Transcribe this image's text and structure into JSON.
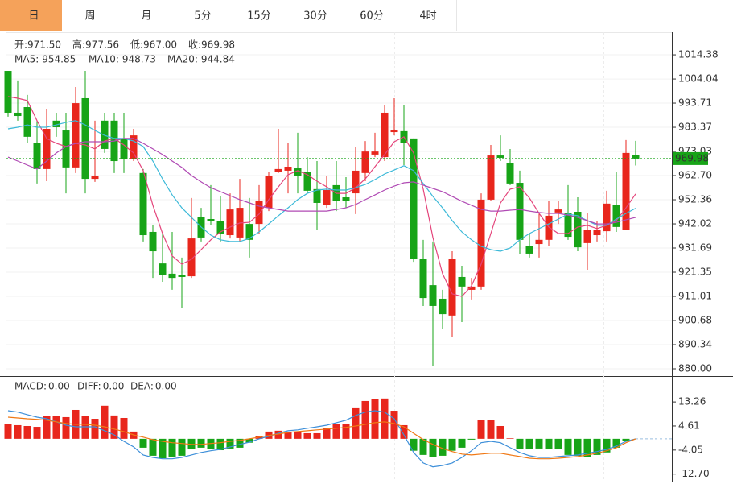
{
  "tabs": [
    "日",
    "周",
    "月",
    "5分",
    "15分",
    "30分",
    "60分",
    "4时"
  ],
  "active_tab": 0,
  "chart_data": [
    {
      "type": "candlestick",
      "grid": true,
      "up_color": "#e8261c",
      "down_color": "#17a417",
      "info_color": "#17a417",
      "info": [
        {
          "label": "开:",
          "value": "971.50"
        },
        {
          "label": "高:",
          "value": "977.56"
        },
        {
          "label": "低:",
          "value": "967.00"
        },
        {
          "label": "收:",
          "value": "969.98"
        }
      ],
      "ylim": [
        877.59,
        1024.05
      ],
      "yticks": [
        1014.38,
        1004.04,
        993.71,
        983.37,
        973.03,
        {
          "value": 962.7,
          "label": "962.70"
        },
        952.36,
        942.02,
        931.69,
        921.35,
        911.01,
        900.68,
        890.34,
        {
          "value": 880,
          "label": "880.00"
        }
      ],
      "open": [
        1007.5,
        989.6,
        992.0,
        976.5,
        965.5,
        986.2,
        982.0,
        966.2,
        995.8,
        961.3,
        986.2,
        986.2,
        978.6,
        969.6,
        963.8,
        938.6,
        925.1,
        920.7,
        920.0,
        919.6,
        944.8,
        944.1,
        943.1,
        937.2,
        936.2,
        942.0,
        942.0,
        948.9,
        964.4,
        964.8,
        965.8,
        964.4,
        956.9,
        950.3,
        958.6,
        953.4,
        955.1,
        963.8,
        971.7,
        970.6,
        981.3,
        981.7,
        978.6,
        926.9,
        915.8,
        910.0,
        902.8,
        919.3,
        913.8,
        915.2,
        952.4,
        971.3,
        967.9,
        959.6,
        932.7,
        933.4,
        935.2,
        946.9,
        946.5,
        947.2,
        933.8,
        937.2,
        938.9,
        950.3,
        939.6,
        971.5
      ],
      "high": [
        1007.5,
        1003.4,
        997.2,
        986.2,
        991.3,
        989.6,
        989.6,
        1000.6,
        1007.5,
        986.2,
        989.6,
        989.6,
        989.6,
        982.7,
        965.5,
        941.4,
        937.9,
        938.6,
        927.6,
        953.1,
        948.9,
        958.6,
        953.8,
        955.1,
        961.3,
        953.1,
        958.6,
        964.1,
        982.7,
        976.5,
        981.0,
        970.6,
        968.9,
        962.7,
        968.9,
        962.0,
        974.8,
        977.5,
        981.0,
        993.0,
        995.8,
        993.0,
        978.6,
        935.2,
        934.5,
        913.8,
        930.3,
        924.1,
        918.9,
        955.1,
        975.8,
        979.9,
        974.1,
        964.8,
        937.9,
        946.9,
        951.7,
        951.7,
        958.6,
        953.4,
        946.5,
        943.1,
        956.2,
        964.4,
        977.9,
        977.56
      ],
      "low": [
        987.9,
        986.2,
        976.5,
        959.3,
        960.3,
        979.3,
        955.1,
        963.8,
        955.1,
        960.0,
        972.4,
        963.8,
        963.8,
        968.9,
        934.5,
        918.9,
        917.2,
        913.8,
        905.9,
        918.9,
        934.5,
        941.4,
        934.5,
        935.8,
        934.5,
        927.6,
        937.9,
        947.5,
        963.8,
        955.1,
        955.1,
        955.1,
        939.3,
        948.9,
        947.5,
        948.9,
        946.2,
        960.3,
        970.6,
        968.9,
        979.9,
        967.2,
        925.8,
        906.9,
        881.4,
        897.2,
        893.8,
        900.0,
        909.7,
        913.8,
        951.7,
        968.9,
        958.6,
        929.3,
        927.6,
        927.6,
        932.7,
        942.0,
        935.2,
        930.3,
        922.4,
        934.5,
        934.5,
        938.6,
        939.6,
        967.0
      ],
      "close": [
        989.6,
        988.2,
        979.3,
        965.5,
        982.7,
        983.4,
        966.2,
        993.7,
        961.3,
        962.7,
        974.1,
        968.9,
        969.9,
        979.9,
        937.2,
        930.3,
        920.0,
        918.9,
        919.3,
        935.8,
        936.2,
        943.4,
        937.9,
        948.2,
        948.9,
        935.2,
        951.7,
        962.7,
        965.5,
        966.5,
        962.7,
        956.2,
        951.0,
        956.5,
        951.7,
        951.7,
        964.8,
        973.0,
        973.0,
        989.6,
        982.0,
        976.5,
        926.9,
        910.3,
        906.9,
        903.4,
        926.9,
        915.2,
        915.2,
        952.4,
        971.3,
        970.3,
        959.3,
        935.2,
        929.3,
        935.2,
        945.5,
        948.2,
        936.5,
        932.0,
        939.6,
        939.6,
        950.7,
        940.7,
        972.4,
        969.98
      ],
      "ma": [
        {
          "name": "MA5:",
          "last": 954.85,
          "color": "#e4457b",
          "values": [
            996.5,
            995.8,
            994.8,
            986.2,
            978.6,
            976.5,
            975.1,
            976.5,
            975.8,
            974.1,
            977.5,
            978.6,
            975.8,
            972.4,
            964.8,
            950.0,
            937.9,
            928.3,
            924.8,
            926.9,
            931.0,
            935.2,
            938.6,
            940.7,
            942.4,
            942.7,
            946.2,
            952.4,
            957.9,
            963.1,
            964.8,
            963.1,
            960.3,
            957.9,
            955.1,
            955.1,
            957.5,
            961.3,
            966.5,
            971.7,
            977.2,
            979.3,
            972.4,
            956.9,
            936.2,
            920.7,
            912.1,
            911.0,
            915.5,
            924.8,
            937.9,
            951.0,
            956.9,
            957.9,
            953.1,
            946.5,
            940.7,
            937.9,
            937.9,
            940.7,
            941.4,
            940.0,
            941.4,
            943.4,
            948.9,
            954.85
          ]
        },
        {
          "name": "MA10:",
          "last": 948.73,
          "color": "#3cb9d8",
          "values": [
            982.7,
            983.4,
            984.4,
            983.4,
            983.4,
            984.4,
            985.5,
            986.2,
            984.4,
            982.0,
            979.9,
            978.6,
            978.6,
            977.5,
            975.1,
            968.9,
            961.3,
            954.4,
            948.9,
            944.8,
            940.7,
            937.2,
            935.2,
            934.5,
            934.5,
            935.8,
            938.6,
            942.0,
            945.5,
            948.9,
            952.4,
            955.1,
            956.5,
            956.9,
            956.5,
            956.5,
            957.5,
            958.9,
            961.0,
            963.4,
            965.1,
            966.9,
            964.8,
            959.3,
            953.8,
            948.9,
            943.4,
            938.6,
            935.2,
            932.4,
            931.0,
            930.3,
            931.7,
            935.2,
            937.9,
            940.0,
            942.0,
            944.1,
            946.2,
            945.5,
            943.4,
            941.4,
            941.4,
            944.1,
            946.5,
            948.73
          ]
        },
        {
          "name": "MA20:",
          "last": 944.84,
          "color": "#b04ab4",
          "values": [
            970.6,
            968.9,
            967.2,
            965.5,
            968.9,
            972.4,
            975.1,
            976.5,
            977.2,
            977.2,
            977.2,
            977.5,
            978.6,
            978.6,
            976.5,
            974.1,
            971.7,
            968.9,
            966.2,
            962.7,
            960.0,
            957.5,
            955.8,
            954.1,
            952.4,
            951.0,
            949.6,
            948.9,
            948.2,
            947.5,
            947.5,
            947.5,
            947.5,
            947.5,
            948.2,
            948.9,
            950.3,
            952.4,
            954.4,
            956.5,
            958.2,
            959.6,
            960.0,
            958.6,
            957.2,
            955.8,
            953.8,
            951.7,
            950.0,
            948.2,
            947.5,
            947.5,
            947.9,
            948.2,
            947.5,
            946.9,
            946.5,
            946.5,
            945.8,
            944.8,
            943.4,
            942.0,
            942.0,
            942.7,
            943.8,
            944.84
          ]
        }
      ]
    },
    {
      "type": "macd",
      "up_color": "#e8261c",
      "down_color": "#17a417",
      "ylim": [
        -15.4,
        21.7
      ],
      "yticks": [
        13.26,
        4.61,
        -4.05,
        {
          "value": -12.7,
          "label": "-12.70"
        }
      ],
      "series": [
        {
          "name": "MACD:",
          "value_label": "0.00",
          "color": "#e8261c",
          "kind": "bar",
          "values": [
            5.2,
            4.9,
            4.6,
            4.3,
            8.1,
            8.1,
            7.8,
            10.4,
            8.1,
            7.2,
            11.9,
            8.4,
            7.5,
            2.6,
            -3.2,
            -6.1,
            -7.0,
            -6.7,
            -6.1,
            -3.8,
            -3.2,
            -3.8,
            -4.1,
            -3.5,
            -3.2,
            -1.4,
            0.9,
            2.6,
            2.9,
            2.3,
            2.3,
            2.0,
            2.0,
            3.8,
            5.2,
            5.2,
            11.0,
            13.6,
            14.2,
            14.5,
            10.1,
            4.9,
            -4.3,
            -5.8,
            -6.7,
            -6.1,
            -4.3,
            -3.2,
            -0.3,
            6.7,
            6.7,
            4.6,
            0.2,
            -3.8,
            -3.8,
            -3.5,
            -3.8,
            -3.8,
            -5.8,
            -6.1,
            -6.7,
            -5.8,
            -4.9,
            -3.2,
            -0.9,
            0
          ]
        },
        {
          "name": "DIFF:",
          "value_label": "0.00",
          "color": "#3d8fd9",
          "kind": "line",
          "values": [
            10.1,
            9.6,
            8.7,
            7.8,
            7.2,
            6.1,
            4.9,
            4.3,
            4.3,
            4.3,
            2.9,
            1.4,
            -0.9,
            -2.9,
            -5.8,
            -6.7,
            -7.2,
            -7.2,
            -6.7,
            -5.8,
            -4.9,
            -4.3,
            -3.8,
            -2.9,
            -2.0,
            -1.2,
            0,
            0.9,
            2.0,
            2.9,
            3.2,
            3.8,
            4.3,
            4.9,
            5.8,
            6.7,
            8.4,
            9.6,
            10.1,
            9.6,
            7.2,
            1.4,
            -4.9,
            -8.7,
            -10.1,
            -9.6,
            -8.7,
            -6.7,
            -4.3,
            -1.4,
            -0.9,
            -1.4,
            -3.2,
            -4.9,
            -6.1,
            -6.7,
            -6.7,
            -6.4,
            -6.1,
            -5.8,
            -5.2,
            -4.6,
            -3.8,
            -2.6,
            -0.9,
            0
          ]
        },
        {
          "name": "DEA:",
          "value_label": "0.00",
          "color": "#f07814",
          "kind": "line",
          "values": [
            7.8,
            7.5,
            7.2,
            7.0,
            6.7,
            6.1,
            5.5,
            5.2,
            5.2,
            4.9,
            4.3,
            3.5,
            2.6,
            1.4,
            0.6,
            -0.3,
            -0.9,
            -1.4,
            -1.7,
            -2.0,
            -2.0,
            -1.7,
            -1.4,
            -0.9,
            -0.6,
            0,
            0.6,
            1.2,
            1.7,
            2.3,
            2.6,
            2.9,
            3.2,
            3.5,
            3.8,
            4.1,
            4.6,
            5.2,
            5.8,
            6.1,
            5.5,
            4.3,
            2.0,
            -0.3,
            -2.0,
            -3.5,
            -4.6,
            -5.5,
            -5.8,
            -5.5,
            -5.2,
            -5.2,
            -5.8,
            -6.4,
            -7.0,
            -7.2,
            -7.2,
            -7.0,
            -6.7,
            -6.4,
            -5.8,
            -5.2,
            -4.3,
            -3.2,
            -1.4,
            0
          ]
        }
      ]
    }
  ]
}
